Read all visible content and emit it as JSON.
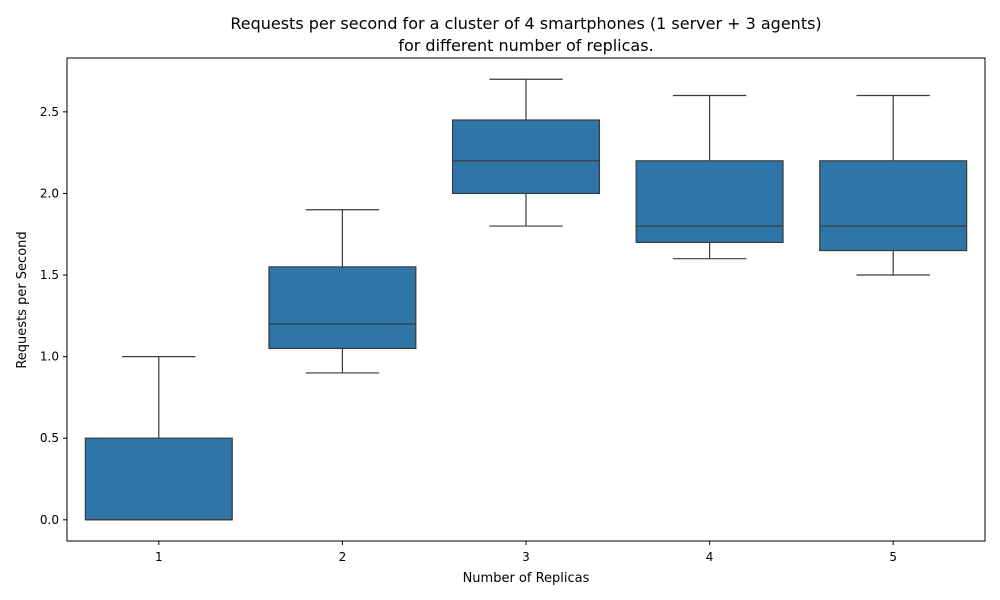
{
  "chart_data": {
    "type": "box",
    "title": "Requests per second for a cluster of 4 smartphones (1 server + 3 agents)",
    "subtitle": "for different number of replicas.",
    "xlabel": "Number of Replicas",
    "ylabel": "Requests per Second",
    "ylim": [
      -0.13,
      2.83
    ],
    "yticks": [
      "0.0",
      "0.5",
      "1.0",
      "1.5",
      "2.0",
      "2.5"
    ],
    "grid": false,
    "box_color": "#2e75a8",
    "line_color": "#3a3a3a",
    "categories": [
      "1",
      "2",
      "3",
      "4",
      "5"
    ],
    "boxes": [
      {
        "category": "1",
        "whisker_low": 0.0,
        "q1": 0.0,
        "median": 0.0,
        "q3": 0.5,
        "whisker_high": 1.0
      },
      {
        "category": "2",
        "whisker_low": 0.9,
        "q1": 1.05,
        "median": 1.2,
        "q3": 1.55,
        "whisker_high": 1.9
      },
      {
        "category": "3",
        "whisker_low": 1.8,
        "q1": 2.0,
        "median": 2.2,
        "q3": 2.45,
        "whisker_high": 2.7
      },
      {
        "category": "4",
        "whisker_low": 1.6,
        "q1": 1.7,
        "median": 1.8,
        "q3": 2.2,
        "whisker_high": 2.6
      },
      {
        "category": "5",
        "whisker_low": 1.5,
        "q1": 1.65,
        "median": 1.8,
        "q3": 2.2,
        "whisker_high": 2.6
      }
    ]
  }
}
